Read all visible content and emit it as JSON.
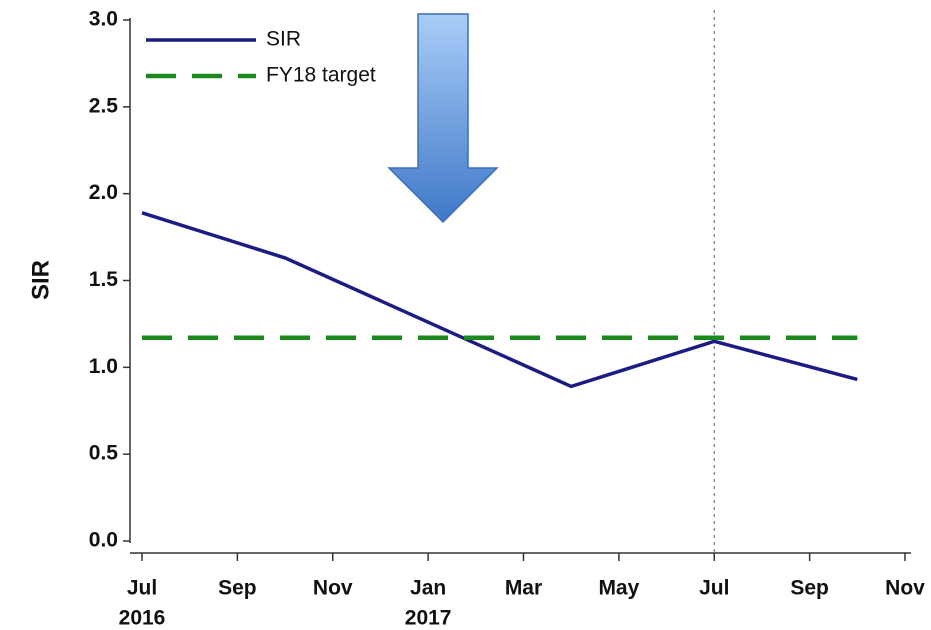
{
  "chart_data": {
    "type": "line",
    "ylabel": "SIR",
    "xlim": [
      "2016-07",
      "2017-11"
    ],
    "ylim": [
      0,
      3
    ],
    "yticks": [
      {
        "value": 0,
        "label": "0.0"
      },
      {
        "value": 0.5,
        "label": "0.5"
      },
      {
        "value": 1,
        "label": "1.0"
      },
      {
        "value": 1.5,
        "label": "1.5"
      },
      {
        "value": 2,
        "label": "2.0"
      },
      {
        "value": 2.5,
        "label": "2.5"
      },
      {
        "value": 3,
        "label": "3.0"
      }
    ],
    "xticks": [
      {
        "value": "2016-07",
        "label": [
          "Jul",
          "2016"
        ]
      },
      {
        "value": "2016-09",
        "label": [
          "Sep"
        ]
      },
      {
        "value": "2016-11",
        "label": [
          "Nov"
        ]
      },
      {
        "value": "2017-01",
        "label": [
          "Jan",
          "2017"
        ]
      },
      {
        "value": "2017-03",
        "label": [
          "Mar"
        ]
      },
      {
        "value": "2017-05",
        "label": [
          "May"
        ]
      },
      {
        "value": "2017-07",
        "label": [
          "Jul"
        ]
      },
      {
        "value": "2017-09",
        "label": [
          "Sep"
        ]
      },
      {
        "value": "2017-11",
        "label": [
          "Nov"
        ]
      }
    ],
    "vline": "2017-07",
    "legend": "top-left",
    "series": [
      {
        "name": "SIR",
        "color": "#1c1c84",
        "dash": false,
        "x": [
          "2016-07",
          "2016-10",
          "2017-01",
          "2017-04",
          "2017-07",
          "2017-10"
        ],
        "values": [
          1.89,
          1.63,
          1.26,
          0.89,
          1.15,
          0.93
        ]
      },
      {
        "name": "FY18 target",
        "color": "#1a8a1a",
        "dash": true,
        "x": [
          "2016-07",
          "2017-10"
        ],
        "values": [
          1.17,
          1.17
        ]
      }
    ]
  }
}
